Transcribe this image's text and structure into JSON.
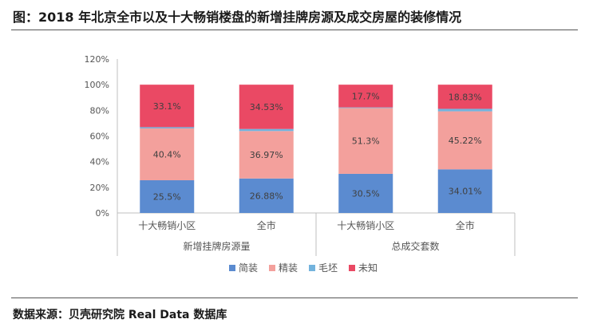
{
  "title": "图：2018 年北京全市以及十大畅销楼盘的新增挂牌房源及成交房屋的装修情况",
  "source": "数据来源：贝壳研究院 Real Data 数据库",
  "colors": {
    "简装": "#5b8bd0",
    "精装": "#f3a09c",
    "毛坯": "#73b3dd",
    "未知": "#ea4964"
  },
  "chart_data": {
    "type": "bar",
    "stacked": true,
    "ylim": [
      0,
      120
    ],
    "yticks": [
      "0%",
      "20%",
      "40%",
      "60%",
      "80%",
      "100%",
      "120%"
    ],
    "categories": [
      "十大畅销小区",
      "全市",
      "十大畅销小区",
      "全市"
    ],
    "groups": [
      {
        "label": "新增挂牌房源量",
        "span": [
          0,
          1
        ]
      },
      {
        "label": "总成交套数",
        "span": [
          2,
          3
        ]
      }
    ],
    "series": [
      {
        "name": "简装",
        "values": [
          25.5,
          26.88,
          30.5,
          34.01
        ],
        "labels": [
          "25.5%",
          "26.88%",
          "30.5%",
          "34.01%"
        ]
      },
      {
        "name": "精装",
        "values": [
          40.4,
          36.97,
          51.3,
          45.22
        ],
        "labels": [
          "40.4%",
          "36.97%",
          "51.3%",
          "45.22%"
        ]
      },
      {
        "name": "毛坯",
        "values": [
          1.0,
          1.62,
          0.5,
          1.94
        ],
        "labels": [
          "",
          "",
          "",
          ""
        ]
      },
      {
        "name": "未知",
        "values": [
          33.1,
          34.53,
          17.7,
          18.83
        ],
        "labels": [
          "33.1%",
          "34.53%",
          "17.7%",
          "18.83%"
        ]
      }
    ],
    "legend_position": "bottom"
  }
}
